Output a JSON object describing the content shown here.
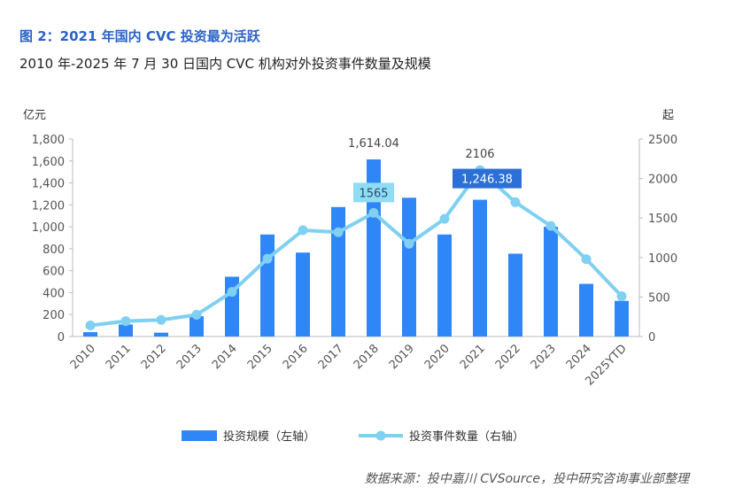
{
  "header": {
    "title": "图 2：2021 年国内 CVC 投资最为活跃",
    "subtitle": "2010 年-2025 年 7 月 30 日国内 CVC 机构对外投资事件数量及规模"
  },
  "source": "数据来源：投中嘉川 CVSource，投中研究咨询事业部整理",
  "chart_data": {
    "type": "bar+line",
    "categories": [
      "2010",
      "2011",
      "2012",
      "2013",
      "2014",
      "2015",
      "2016",
      "2017",
      "2018",
      "2019",
      "2020",
      "2021",
      "2022",
      "2023",
      "2024",
      "2025YTD"
    ],
    "series": [
      {
        "name": "投资规模（左轴）",
        "type": "bar",
        "axis": "left",
        "values": [
          40,
          110,
          35,
          185,
          545,
          930,
          765,
          1180,
          1614.04,
          1265,
          930,
          1246.38,
          755,
          1000,
          480,
          325
        ]
      },
      {
        "name": "投资事件数量（右轴）",
        "type": "line",
        "axis": "right",
        "values": [
          140,
          195,
          210,
          275,
          565,
          985,
          1345,
          1320,
          1565,
          1175,
          1490,
          2106,
          1700,
          1400,
          980,
          510
        ]
      }
    ],
    "left_axis": {
      "unit": "亿元",
      "min": 0,
      "max": 1800,
      "step": 200,
      "ticks": [
        "0",
        "200",
        "400",
        "600",
        "800",
        "1,000",
        "1,200",
        "1,400",
        "1,600",
        "1,800"
      ]
    },
    "right_axis": {
      "unit": "起",
      "min": 0,
      "max": 2500,
      "step": 500,
      "ticks": [
        "0",
        "500",
        "1000",
        "1500",
        "2000",
        "2500"
      ]
    },
    "annotations": [
      {
        "text": "1,614.04",
        "series": "bar",
        "index": 8,
        "style": "plain"
      },
      {
        "text": "1565",
        "series": "line",
        "index": 8,
        "style": "box-light"
      },
      {
        "text": "2106",
        "series": "line",
        "index": 11,
        "style": "plain"
      },
      {
        "text": "1,246.38",
        "series": "bar",
        "index": 11,
        "style": "box-dark"
      }
    ],
    "grid": false,
    "legend": "bottom",
    "colors": {
      "bar": "#2f86f6",
      "line": "#7fd0f2",
      "box_light": "#8fdcf5",
      "box_dark": "#2c6fd6"
    }
  }
}
